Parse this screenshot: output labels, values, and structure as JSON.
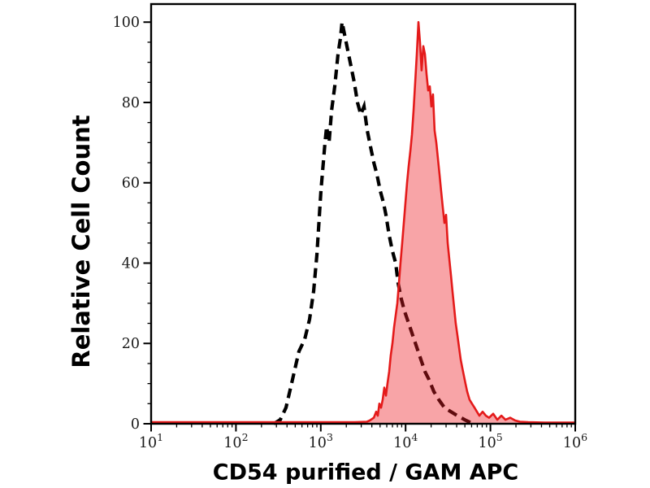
{
  "figure": {
    "description": "flow cytometry histogram overlay",
    "background_color": "#ffffff",
    "frame_color": "#000000",
    "tick_label_color": "#1a1a1a"
  },
  "chart_data": {
    "type": "area",
    "title": "",
    "xlabel": "CD54 purified / GAM APC",
    "ylabel": "Relative Cell Count",
    "x_scale": "log10",
    "xlim": [
      10,
      1000000
    ],
    "ylim": [
      0,
      104.5
    ],
    "grid": false,
    "legend": "none",
    "x_ticks": {
      "values": [
        10,
        100,
        1000,
        10000,
        100000,
        1000000
      ],
      "labels": [
        "10^1",
        "10^2",
        "10^3",
        "10^4",
        "10^5",
        "10^6"
      ],
      "minor": "log sub-decades k=2..9 per decade"
    },
    "y_ticks": {
      "values": [
        0,
        20,
        40,
        60,
        80,
        100
      ],
      "labels": [
        "0",
        "20",
        "40",
        "60",
        "80",
        "100"
      ],
      "minor_step": 5
    },
    "series": [
      {
        "name": "negative control (black dashed open histogram)",
        "line_style": "dashed",
        "color": "#000000",
        "fill": "none",
        "peak_x": 1800,
        "peak_y": 100,
        "points": [
          [
            279,
            0
          ],
          [
            333,
            1
          ],
          [
            389,
            4
          ],
          [
            464,
            11
          ],
          [
            553,
            18
          ],
          [
            646,
            21
          ],
          [
            738,
            26
          ],
          [
            824,
            33
          ],
          [
            900,
            42
          ],
          [
            1005,
            58
          ],
          [
            1122,
            70
          ],
          [
            1172,
            74
          ],
          [
            1253,
            70
          ],
          [
            1340,
            78
          ],
          [
            1462,
            84
          ],
          [
            1596,
            92
          ],
          [
            1706,
            96
          ],
          [
            1782,
            100
          ],
          [
            1905,
            97
          ],
          [
            2080,
            93
          ],
          [
            2270,
            89
          ],
          [
            2483,
            85
          ],
          [
            2710,
            80
          ],
          [
            2958,
            77
          ],
          [
            3236,
            79
          ],
          [
            3532,
            73
          ],
          [
            3855,
            69
          ],
          [
            4217,
            65
          ],
          [
            4603,
            62
          ],
          [
            5023,
            58
          ],
          [
            5483,
            55
          ],
          [
            5861,
            52
          ],
          [
            6397,
            47
          ],
          [
            6998,
            43
          ],
          [
            7638,
            40
          ],
          [
            8166,
            35
          ],
          [
            8913,
            31
          ],
          [
            9727,
            28
          ],
          [
            10864,
            25
          ],
          [
            12134,
            22
          ],
          [
            13552,
            19
          ],
          [
            15136,
            16
          ],
          [
            16904,
            13
          ],
          [
            18880,
            11
          ],
          [
            21528,
            8
          ],
          [
            24604,
            6
          ],
          [
            28708,
            4
          ],
          [
            34198,
            3
          ],
          [
            40832,
            2
          ],
          [
            49774,
            1
          ],
          [
            62087,
            0
          ]
        ]
      },
      {
        "name": "CD54 purified / GAM APC (red filled histogram)",
        "line_style": "solid",
        "color": "#e41a1a",
        "fill": "#ed1c24",
        "fill_opacity": 0.4,
        "peak_x": 14000,
        "peak_y": 100,
        "points": [
          [
            10,
            0.4
          ],
          [
            1000,
            0.4
          ],
          [
            2500,
            0.4
          ],
          [
            3500,
            0.5
          ],
          [
            3780,
            0.8
          ],
          [
            4220,
            1.5
          ],
          [
            4500,
            3
          ],
          [
            4700,
            2
          ],
          [
            4910,
            5
          ],
          [
            5140,
            4
          ],
          [
            5370,
            6
          ],
          [
            5610,
            9
          ],
          [
            5860,
            7
          ],
          [
            6120,
            10
          ],
          [
            6400,
            13
          ],
          [
            6680,
            17
          ],
          [
            7000,
            20
          ],
          [
            7310,
            24
          ],
          [
            7640,
            27
          ],
          [
            7980,
            30
          ],
          [
            8340,
            35
          ],
          [
            8710,
            40
          ],
          [
            9120,
            45
          ],
          [
            9530,
            50
          ],
          [
            9950,
            55
          ],
          [
            10400,
            60
          ],
          [
            10860,
            64
          ],
          [
            11380,
            68
          ],
          [
            11890,
            72
          ],
          [
            12420,
            78
          ],
          [
            12970,
            85
          ],
          [
            13550,
            92
          ],
          [
            14160,
            100
          ],
          [
            14790,
            95
          ],
          [
            15450,
            88
          ],
          [
            16180,
            94
          ],
          [
            16900,
            92
          ],
          [
            17660,
            87
          ],
          [
            18450,
            83
          ],
          [
            19280,
            84
          ],
          [
            20140,
            79
          ],
          [
            21040,
            82
          ],
          [
            21980,
            73
          ],
          [
            23010,
            70
          ],
          [
            24040,
            66
          ],
          [
            25120,
            62
          ],
          [
            26240,
            58
          ],
          [
            27420,
            54
          ],
          [
            28710,
            50
          ],
          [
            29990,
            52
          ],
          [
            31330,
            45
          ],
          [
            32730,
            41
          ],
          [
            34200,
            37
          ],
          [
            35730,
            33
          ],
          [
            37330,
            29
          ],
          [
            38990,
            25
          ],
          [
            40830,
            22
          ],
          [
            42660,
            19
          ],
          [
            44570,
            16
          ],
          [
            46560,
            14
          ],
          [
            48640,
            12
          ],
          [
            50820,
            10
          ],
          [
            53210,
            8
          ],
          [
            56750,
            6
          ],
          [
            60670,
            5
          ],
          [
            64860,
            4
          ],
          [
            69340,
            3
          ],
          [
            74130,
            2
          ],
          [
            80910,
            3
          ],
          [
            88310,
            2
          ],
          [
            96610,
            1.5
          ],
          [
            107900,
            2.5
          ],
          [
            120500,
            1
          ],
          [
            134600,
            2
          ],
          [
            150300,
            1
          ],
          [
            171400,
            1.5
          ],
          [
            195900,
            0.8
          ],
          [
            223400,
            0.5
          ],
          [
            278600,
            0.4
          ],
          [
            432500,
            0.3
          ],
          [
            1000000,
            0.3
          ]
        ]
      }
    ]
  }
}
